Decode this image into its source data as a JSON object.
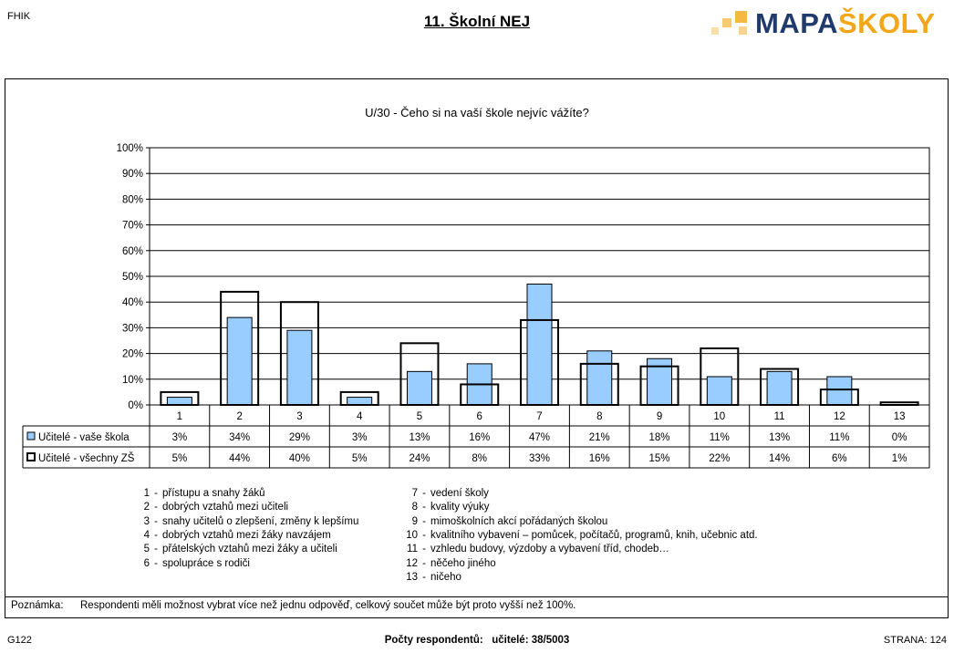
{
  "header": {
    "corner_label": "FHIK",
    "title": "11. Školní NEJ",
    "logo_part1": "MAPA",
    "logo_part2": "ŠKOLY"
  },
  "chart_data": {
    "type": "bar",
    "title": "U/30 - Čeho si na vaší škole nejvíc vážíte?",
    "categories": [
      "1",
      "2",
      "3",
      "4",
      "5",
      "6",
      "7",
      "8",
      "9",
      "10",
      "11",
      "12",
      "13"
    ],
    "y_ticks": [
      "0%",
      "10%",
      "20%",
      "30%",
      "40%",
      "50%",
      "60%",
      "70%",
      "80%",
      "90%",
      "100%"
    ],
    "ylim": [
      0,
      100
    ],
    "grid": true,
    "series": [
      {
        "name": "Učitelé - vaše škola",
        "values": [
          3,
          34,
          29,
          3,
          13,
          16,
          47,
          21,
          18,
          11,
          13,
          11,
          0
        ],
        "labels": [
          "3%",
          "34%",
          "29%",
          "3%",
          "13%",
          "16%",
          "47%",
          "21%",
          "18%",
          "11%",
          "13%",
          "11%",
          "0%"
        ],
        "color": "#99ccff",
        "style": "filled"
      },
      {
        "name": "Učitelé - všechny ZŠ",
        "values": [
          5,
          44,
          40,
          5,
          24,
          8,
          33,
          16,
          15,
          22,
          14,
          6,
          1
        ],
        "labels": [
          "5%",
          "44%",
          "40%",
          "5%",
          "24%",
          "8%",
          "33%",
          "16%",
          "15%",
          "22%",
          "14%",
          "6%",
          "1%"
        ],
        "color": "#ffffff",
        "style": "outline"
      }
    ]
  },
  "legend_items": [
    {
      "n": "1",
      "t": "přístupu a snahy žáků"
    },
    {
      "n": "2",
      "t": "dobrých vztahů mezi učiteli"
    },
    {
      "n": "3",
      "t": "snahy učitelů o zlepšení, změny k lepšímu"
    },
    {
      "n": "4",
      "t": "dobrých vztahů mezi žáky navzájem"
    },
    {
      "n": "5",
      "t": "přátelských vztahů mezi žáky a učiteli"
    },
    {
      "n": "6",
      "t": "spolupráce s rodiči"
    },
    {
      "n": "7",
      "t": "vedení školy"
    },
    {
      "n": "8",
      "t": "kvality výuky"
    },
    {
      "n": "9",
      "t": "mimoškolních akcí pořádaných školou"
    },
    {
      "n": "10",
      "t": "kvalitního vybavení – pomůcek, počítačů, programů, knih, učebnic atd."
    },
    {
      "n": "11",
      "t": "vzhledu budovy, výzdoby a vybavení tříd, chodeb…"
    },
    {
      "n": "12",
      "t": "něčeho jiného"
    },
    {
      "n": "13",
      "t": "ničeho"
    }
  ],
  "note": {
    "label": "Poznámka:",
    "text": "Respondenti měli možnost vybrat více než jednu odpověď, celkový součet může být proto vyšší než 100%."
  },
  "footer": {
    "code": "G122",
    "respondents_label": "Počty respondentů:",
    "respondents_value": "učitelé: 38/5003",
    "page": "STRANA: 124"
  }
}
